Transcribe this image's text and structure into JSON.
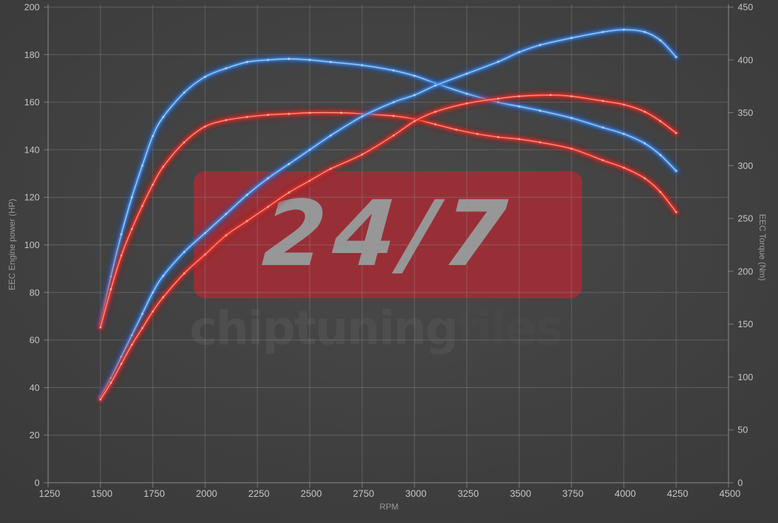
{
  "watermark": {
    "badge_text": "24/7",
    "brand_bold": "chiptuning",
    "brand_tail": "files"
  },
  "colors": {
    "background_center": "#4a4a4a",
    "background_edge": "#313131",
    "grid": "#909090",
    "axis_line": "#a8a8a8",
    "tick_label": "#c6c6c6",
    "axis_title": "#9c9c9c",
    "tuned_base": "#3f87dd",
    "tuned_glow": "#1c57b8",
    "tuned_core": "#bcdcf8",
    "original_base": "#e03026",
    "original_glow": "#b01212",
    "original_core": "#ffb2a8",
    "badge_bg": "#9d2e37",
    "badge_text_color": "#9c9c9c",
    "brand_bold_color": "#4e4e4e",
    "brand_tail_color": "#474747"
  },
  "chart_data": {
    "type": "line",
    "title": "",
    "xlabel": "RPM",
    "ylabel_left": "EEC Engine power (HP)",
    "ylabel_right": "EEC Torque (Nm)",
    "x_range": [
      1250,
      4500
    ],
    "x_ticks": [
      1250,
      1500,
      1750,
      2000,
      2250,
      2500,
      2750,
      3000,
      3250,
      3500,
      3750,
      4000,
      4250,
      4500
    ],
    "y_left_range": [
      0,
      200
    ],
    "y_left_ticks": [
      0,
      20,
      40,
      60,
      80,
      100,
      120,
      140,
      160,
      180,
      200
    ],
    "y_right_range": [
      0,
      450
    ],
    "y_right_ticks": [
      0,
      50,
      100,
      150,
      200,
      250,
      300,
      350,
      400,
      450
    ],
    "grid": true,
    "legend_position": "none",
    "series": [
      {
        "name": "torque_tuned",
        "axis": "right",
        "unit": "Nm",
        "style": "tuned",
        "points": [
          [
            1500,
            150
          ],
          [
            1550,
            195
          ],
          [
            1600,
            235
          ],
          [
            1650,
            270
          ],
          [
            1700,
            300
          ],
          [
            1750,
            328
          ],
          [
            1800,
            346
          ],
          [
            1900,
            369
          ],
          [
            2000,
            384
          ],
          [
            2100,
            392
          ],
          [
            2200,
            398
          ],
          [
            2300,
            400
          ],
          [
            2400,
            401
          ],
          [
            2500,
            400
          ],
          [
            2600,
            398
          ],
          [
            2750,
            395
          ],
          [
            2900,
            390
          ],
          [
            3000,
            385
          ],
          [
            3100,
            378
          ],
          [
            3250,
            368
          ],
          [
            3400,
            360
          ],
          [
            3500,
            356
          ],
          [
            3600,
            352
          ],
          [
            3750,
            345
          ],
          [
            3900,
            336
          ],
          [
            4000,
            330
          ],
          [
            4100,
            321
          ],
          [
            4175,
            310
          ],
          [
            4250,
            295
          ]
        ]
      },
      {
        "name": "torque_original",
        "axis": "right",
        "unit": "Nm",
        "style": "original",
        "points": [
          [
            1500,
            147
          ],
          [
            1550,
            183
          ],
          [
            1600,
            215
          ],
          [
            1650,
            240
          ],
          [
            1700,
            262
          ],
          [
            1750,
            282
          ],
          [
            1800,
            299
          ],
          [
            1900,
            322
          ],
          [
            2000,
            337
          ],
          [
            2100,
            343
          ],
          [
            2200,
            346
          ],
          [
            2300,
            348
          ],
          [
            2400,
            349
          ],
          [
            2500,
            350
          ],
          [
            2650,
            350
          ],
          [
            2750,
            349
          ],
          [
            2900,
            347
          ],
          [
            3000,
            344
          ],
          [
            3100,
            339
          ],
          [
            3200,
            334
          ],
          [
            3300,
            330
          ],
          [
            3400,
            327
          ],
          [
            3500,
            325
          ],
          [
            3600,
            322
          ],
          [
            3750,
            316
          ],
          [
            3900,
            305
          ],
          [
            4000,
            298
          ],
          [
            4100,
            288
          ],
          [
            4175,
            275
          ],
          [
            4250,
            256
          ]
        ]
      },
      {
        "name": "power_tuned",
        "axis": "left",
        "unit": "HP",
        "style": "tuned",
        "points": [
          [
            1500,
            36
          ],
          [
            1550,
            44
          ],
          [
            1600,
            53
          ],
          [
            1650,
            62
          ],
          [
            1700,
            71
          ],
          [
            1750,
            80
          ],
          [
            1800,
            87
          ],
          [
            1900,
            97
          ],
          [
            2000,
            105
          ],
          [
            2100,
            113
          ],
          [
            2200,
            121
          ],
          [
            2300,
            128
          ],
          [
            2400,
            134
          ],
          [
            2500,
            140
          ],
          [
            2600,
            146
          ],
          [
            2750,
            154
          ],
          [
            2900,
            160
          ],
          [
            3000,
            163
          ],
          [
            3100,
            167
          ],
          [
            3250,
            172
          ],
          [
            3400,
            177
          ],
          [
            3500,
            181
          ],
          [
            3600,
            184
          ],
          [
            3750,
            187
          ],
          [
            3900,
            189.5
          ],
          [
            4000,
            190.5
          ],
          [
            4100,
            189.5
          ],
          [
            4175,
            186
          ],
          [
            4250,
            179
          ]
        ]
      },
      {
        "name": "power_original",
        "axis": "left",
        "unit": "HP",
        "style": "original",
        "points": [
          [
            1500,
            35
          ],
          [
            1550,
            42
          ],
          [
            1600,
            50
          ],
          [
            1650,
            58
          ],
          [
            1700,
            65
          ],
          [
            1750,
            72
          ],
          [
            1800,
            78
          ],
          [
            1900,
            88
          ],
          [
            2000,
            96
          ],
          [
            2100,
            104
          ],
          [
            2200,
            110
          ],
          [
            2300,
            116
          ],
          [
            2400,
            122
          ],
          [
            2500,
            127
          ],
          [
            2600,
            132
          ],
          [
            2750,
            138
          ],
          [
            2900,
            146
          ],
          [
            3000,
            152
          ],
          [
            3100,
            156
          ],
          [
            3250,
            159.5
          ],
          [
            3400,
            161.5
          ],
          [
            3500,
            162.5
          ],
          [
            3650,
            163
          ],
          [
            3750,
            162.5
          ],
          [
            3900,
            160.5
          ],
          [
            4000,
            159
          ],
          [
            4100,
            156
          ],
          [
            4175,
            152
          ],
          [
            4250,
            147
          ]
        ]
      }
    ]
  }
}
